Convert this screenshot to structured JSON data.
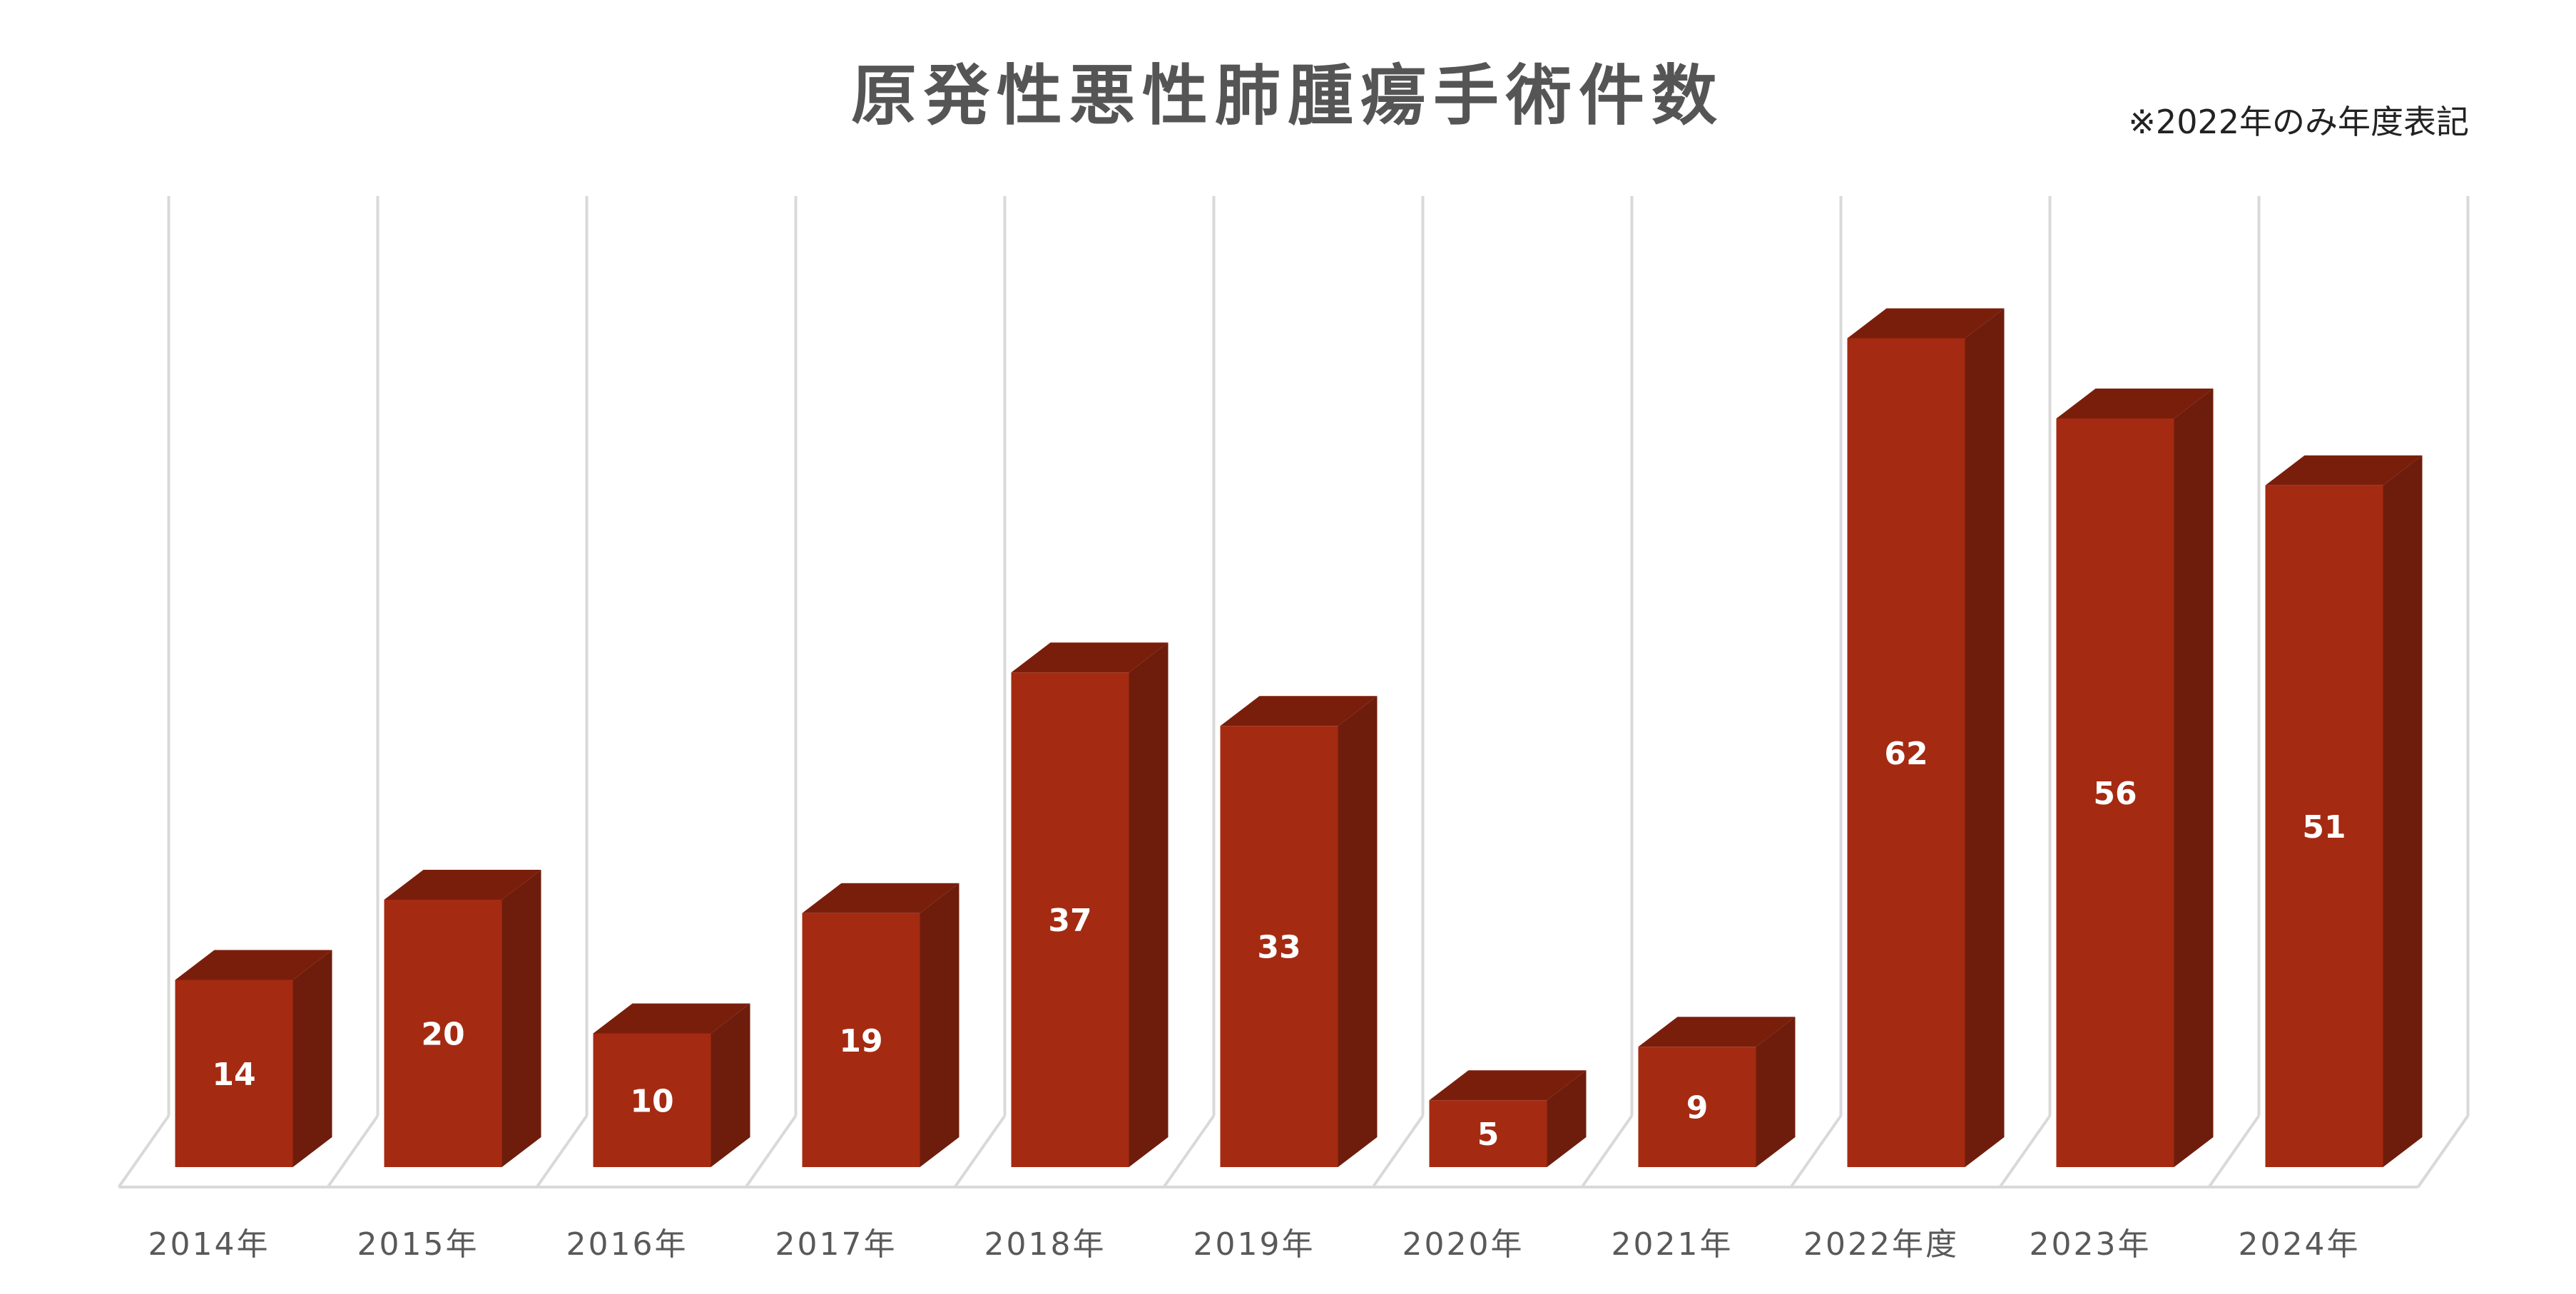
{
  "chart_data": {
    "type": "bar",
    "title": "原発性悪性肺腫瘍手術件数",
    "subtitle": "※2022年のみ年度表記",
    "categories": [
      "2014年",
      "2015年",
      "2016年",
      "2017年",
      "2018年",
      "2019年",
      "2020年",
      "2021年",
      "2022年度",
      "2023年",
      "2024年"
    ],
    "series": [
      {
        "values": [
          14,
          20,
          10,
          19,
          37,
          33,
          5,
          9,
          62,
          56,
          51
        ]
      }
    ],
    "ylim": [
      0,
      70
    ],
    "grid": "vertical",
    "legend": "none",
    "style": "3d-column",
    "colors": {
      "front": "#A52A12",
      "top": "#7A1E0C",
      "side": "#6E1D0C",
      "grid": "#d9d9d9",
      "tick_text": "#595959",
      "label_text": "#ffffff"
    }
  }
}
